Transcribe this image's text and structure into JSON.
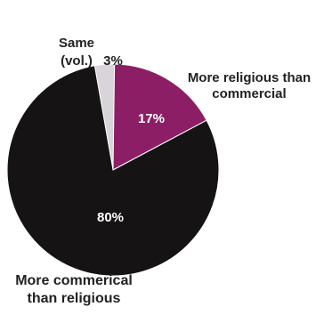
{
  "chart_data": {
    "type": "pie",
    "title": "",
    "slices": [
      {
        "label_lines": [
          "More religious than",
          "commercial"
        ],
        "value": 17,
        "value_label": "17%",
        "color": "#8c1e66",
        "label_color": "#222222",
        "value_label_color": "#ffffff"
      },
      {
        "label_lines": [
          "More commerical",
          "than religious"
        ],
        "value": 80,
        "value_label": "80%",
        "color": "#151313",
        "label_color": "#222222",
        "value_label_color": "#ffffff"
      },
      {
        "label_lines": [
          "Same",
          "(vol.)"
        ],
        "value": 3,
        "value_label": "3%",
        "color": "#d9d4da",
        "label_color": "#222222",
        "value_label_color": "#222222"
      }
    ]
  }
}
